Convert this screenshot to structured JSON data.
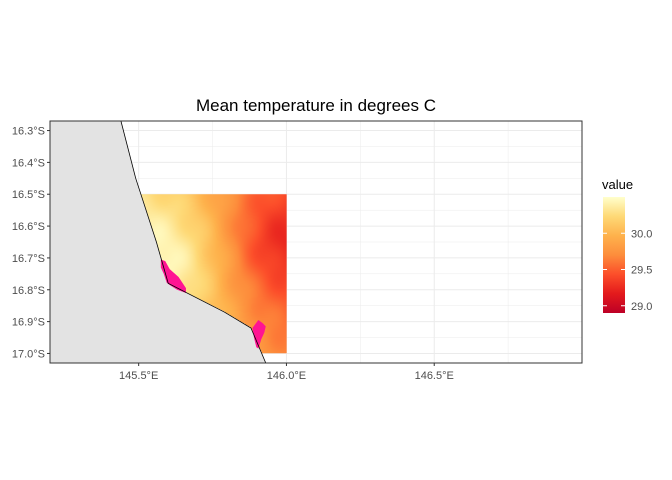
{
  "chart_data": {
    "type": "raster-map",
    "title": "Mean temperature in degrees C",
    "xlim": [
      145.2,
      147.0
    ],
    "ylim": [
      -17.03,
      -16.27
    ],
    "x_ticks": [
      {
        "value": 145.5,
        "label": "145.5°E"
      },
      {
        "value": 146.0,
        "label": "146.0°E"
      },
      {
        "value": 146.5,
        "label": "146.5°E"
      }
    ],
    "y_ticks": [
      {
        "value": -16.3,
        "label": "16.3°S"
      },
      {
        "value": -16.4,
        "label": "16.4°S"
      },
      {
        "value": -16.5,
        "label": "16.5°S"
      },
      {
        "value": -16.6,
        "label": "16.6°S"
      },
      {
        "value": -16.7,
        "label": "16.7°S"
      },
      {
        "value": -16.8,
        "label": "16.8°S"
      },
      {
        "value": -16.9,
        "label": "16.9°S"
      },
      {
        "value": -17.0,
        "label": "17.0°S"
      }
    ],
    "grid": true,
    "raster": {
      "lon_range": [
        145.5,
        146.0
      ],
      "lat_range": [
        -17.0,
        -16.5
      ],
      "value_range": [
        28.9,
        30.5
      ],
      "warm_point": {
        "lon": 145.55,
        "lat": -16.72,
        "value": 30.5
      },
      "cool_point": {
        "lon": 146.0,
        "lat": -16.65,
        "value": 29.2
      },
      "na_color": "#ff1493"
    },
    "coastline": [
      [
        145.44,
        -16.27
      ],
      [
        145.49,
        -16.45
      ],
      [
        145.56,
        -16.65
      ],
      [
        145.6,
        -16.78
      ],
      [
        145.79,
        -16.87
      ],
      [
        145.88,
        -16.92
      ],
      [
        145.93,
        -17.03
      ]
    ],
    "na_patches": [
      [
        [
          145.575,
          -16.705
        ],
        [
          145.59,
          -16.71
        ],
        [
          145.605,
          -16.735
        ],
        [
          145.635,
          -16.76
        ],
        [
          145.66,
          -16.795
        ],
        [
          145.66,
          -16.81
        ],
        [
          145.63,
          -16.8
        ],
        [
          145.605,
          -16.785
        ],
        [
          145.595,
          -16.778
        ],
        [
          145.585,
          -16.75
        ],
        [
          145.575,
          -16.73
        ]
      ],
      [
        [
          145.885,
          -16.92
        ],
        [
          145.905,
          -16.895
        ],
        [
          145.92,
          -16.905
        ],
        [
          145.93,
          -16.915
        ],
        [
          145.925,
          -16.935
        ],
        [
          145.915,
          -16.955
        ],
        [
          145.905,
          -16.985
        ],
        [
          145.898,
          -16.98
        ],
        [
          145.89,
          -16.95
        ]
      ]
    ],
    "legend": {
      "title": "value",
      "position": "right",
      "ticks": [
        {
          "value": 29.0,
          "label": "29.0"
        },
        {
          "value": 29.5,
          "label": "29.5"
        },
        {
          "value": 30.0,
          "label": "30.0"
        }
      ],
      "range": [
        28.9,
        30.5
      ]
    },
    "colors": {
      "land": "#e3e3e3",
      "coast": "#000000",
      "grid": "#ebebeb",
      "panel_border": "#333333",
      "palette": [
        "#bd0026",
        "#e31a1c",
        "#fc4e2a",
        "#fd8d3c",
        "#feb24c",
        "#fed976",
        "#ffffcc"
      ]
    }
  }
}
